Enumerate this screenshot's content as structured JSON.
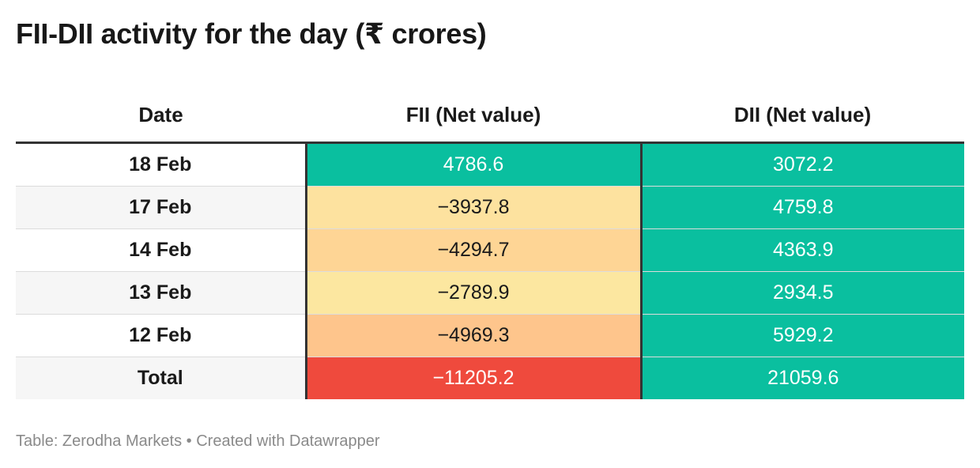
{
  "title": "FII-DII activity for the day (₹ crores)",
  "footer": "Table: Zerodha Markets • Created with Datawrapper",
  "chart_data": {
    "type": "table",
    "title": "FII-DII activity for the day (₹ crores)",
    "columns": [
      "Date",
      "FII (Net value)",
      "DII (Net value)"
    ],
    "rows": [
      {
        "date": "18 Feb",
        "fii": "4786.6",
        "dii": "3072.2"
      },
      {
        "date": "17 Feb",
        "fii": "−3937.8",
        "dii": "4759.8"
      },
      {
        "date": "14 Feb",
        "fii": "−4294.7",
        "dii": "4363.9"
      },
      {
        "date": "13 Feb",
        "fii": "−2789.9",
        "dii": "2934.5"
      },
      {
        "date": "12 Feb",
        "fii": "−4969.3",
        "dii": "5929.2"
      },
      {
        "date": "Total",
        "fii": "−11205.2",
        "dii": "21059.6"
      }
    ],
    "colors": {
      "positive": "#0abf9f",
      "fii_cells": [
        "#0abf9f",
        "#fde29f",
        "#fed595",
        "#fce7a0",
        "#fec58c",
        "#ef4a3d"
      ],
      "dii_cells": [
        "#0abf9f",
        "#0abf9f",
        "#0abf9f",
        "#0abf9f",
        "#0abf9f",
        "#0abf9f"
      ],
      "text_on_dark": "#ffffff",
      "text_on_light": "#1a1a1a"
    }
  }
}
